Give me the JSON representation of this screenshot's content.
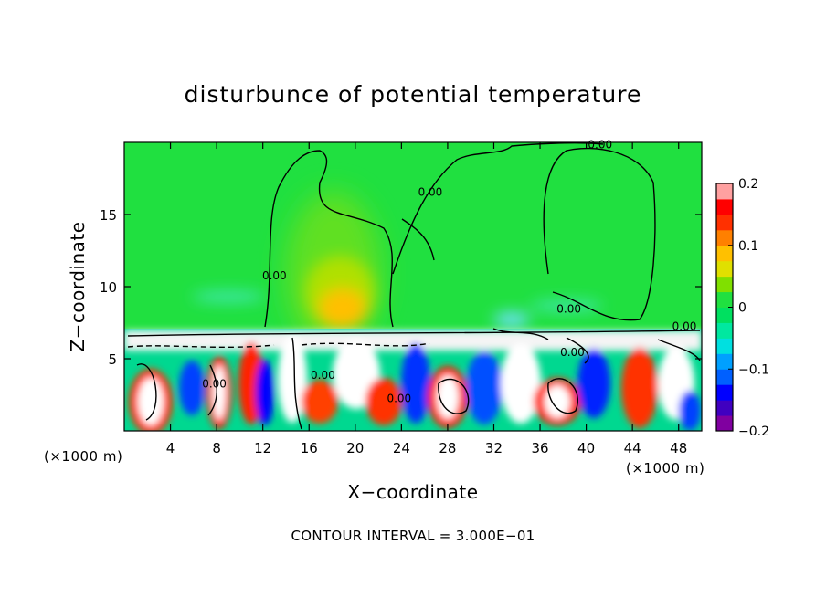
{
  "chart_data": {
    "type": "heatmap",
    "title": "disturbunce of potential temperature",
    "xlabel": "X−coordinate",
    "ylabel": "Z−coordinate",
    "x_unit_label_left": "(×1000 m)",
    "x_unit_label_right": "(×1000 m)",
    "footer": "CONTOUR INTERVAL = 3.000E−01",
    "xlim": [
      0,
      50
    ],
    "ylim": [
      0,
      20
    ],
    "xticks": [
      4,
      8,
      12,
      16,
      20,
      24,
      28,
      32,
      36,
      40,
      44,
      48
    ],
    "xtick_labels": [
      "4",
      "8",
      "12",
      "16",
      "20",
      "24",
      "28",
      "32",
      "36",
      "40",
      "44",
      "48"
    ],
    "yticks": [
      5,
      10,
      15
    ],
    "ytick_labels": [
      "5",
      "10",
      "15"
    ],
    "contour_labels": [
      {
        "text": "0.00",
        "x": 41.2,
        "z": 19.6
      },
      {
        "text": "0.00",
        "x": 26.5,
        "z": 16.3
      },
      {
        "text": "0.00",
        "x": 13.0,
        "z": 10.5
      },
      {
        "text": "0.00",
        "x": 38.5,
        "z": 8.2
      },
      {
        "text": "0.00",
        "x": 48.5,
        "z": 7.0
      },
      {
        "text": "0.00",
        "x": 38.8,
        "z": 5.2
      },
      {
        "text": "0.00",
        "x": 7.8,
        "z": 3.0
      },
      {
        "text": "0.00",
        "x": 17.2,
        "z": 3.6
      },
      {
        "text": "0.00",
        "x": 23.8,
        "z": 2.0
      }
    ],
    "colorbar": {
      "range": [
        -0.2,
        0.2
      ],
      "tick_values": [
        0.2,
        0.1,
        0,
        -0.1,
        -0.2
      ],
      "tick_labels": [
        "0.2",
        "0.1",
        "0",
        "−0.1",
        "−0.2"
      ],
      "colors": [
        "#8000a0",
        "#4000c0",
        "#0000ff",
        "#0060ff",
        "#00a0ff",
        "#00e0e0",
        "#00e8a0",
        "#00e060",
        "#20e040",
        "#80e000",
        "#e0e000",
        "#ffc000",
        "#ff8000",
        "#ff3000",
        "#ff0000",
        "#ffa0a0"
      ]
    }
  }
}
